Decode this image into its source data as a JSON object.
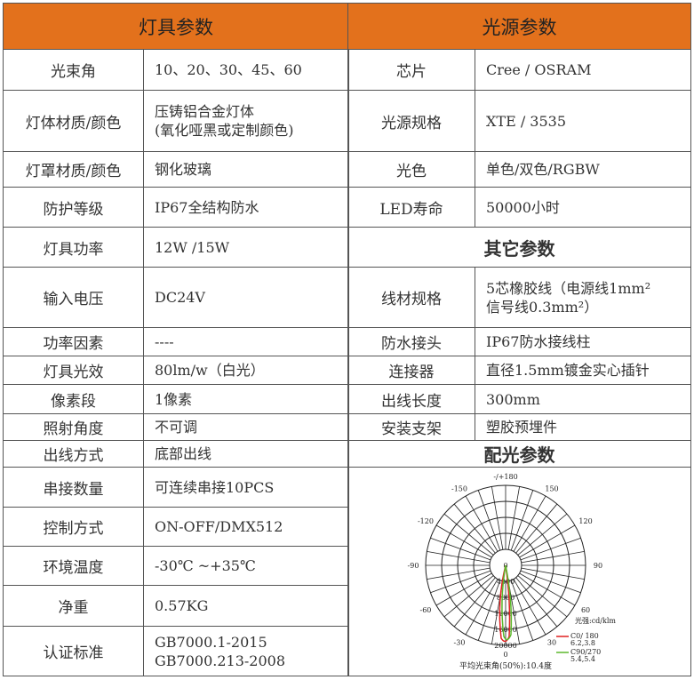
{
  "left": {
    "title": "灯具参数",
    "rows": [
      {
        "k": "光束角",
        "v": "10、20、30、45、60",
        "h": 46
      },
      {
        "k": "灯体材质/颜色",
        "v": "压铸铝合金灯体\n(氧化哑黑或定制颜色)",
        "h": 69
      },
      {
        "k": "灯罩材质/颜色",
        "v": "钢化玻璃",
        "h": 40
      },
      {
        "k": "防护等级",
        "v": "IP67全结构防水",
        "h": 45
      },
      {
        "k": "灯具功率",
        "v": "12W /15W",
        "h": 45
      },
      {
        "k": "输入电压",
        "v": "DC24V",
        "h": 68
      },
      {
        "k": "功率因素",
        "v": "----",
        "h": 32
      },
      {
        "k": "灯具光效",
        "v": "80lm/w（白光）",
        "h": 32
      },
      {
        "k": "像素段",
        "v": "1像素",
        "h": 33
      },
      {
        "k": "照射角度",
        "v": "不可调",
        "h": 30
      },
      {
        "k": "出线方式",
        "v": "底部出线",
        "h": 30
      },
      {
        "k": "串接数量",
        "v": "可连续串接10PCS",
        "h": 45
      },
      {
        "k": "控制方式",
        "v": "ON-OFF/DMX512",
        "h": 44
      },
      {
        "k": "环境温度",
        "v": "-30℃ ~+35℃",
        "h": 44
      },
      {
        "k": "净重",
        "v": "0.57KG",
        "h": 46
      },
      {
        "k": "认证标准",
        "v": "GB7000.1-2015\nGB7000.213-2008",
        "h": 55
      }
    ]
  },
  "right": {
    "title": "光源参数",
    "rows": [
      {
        "k": "芯片",
        "v": "Cree / OSRAM",
        "h": 46
      },
      {
        "k": "光源规格",
        "v": "XTE / 3535",
        "h": 69
      },
      {
        "k": "光色",
        "v": "单色/双色/RGBW",
        "h": 40
      },
      {
        "k": "LED寿命",
        "v": "50000小时",
        "h": 45
      }
    ],
    "other_title": "其它参数",
    "other_rows": [
      {
        "k": "线材规格",
        "v": "5芯橡胶线（电源线1mm²\n信号线0.3mm²）",
        "h": 68
      },
      {
        "k": "防水接头",
        "v": "IP67防水接线柱",
        "h": 32
      },
      {
        "k": "连接器",
        "v": "直径1.5mm镀金实心插针",
        "h": 32
      },
      {
        "k": "出线长度",
        "v": "300mm",
        "h": 33
      },
      {
        "k": "安装支架",
        "v": "塑胶预埋件",
        "h": 30
      }
    ],
    "photo_title": "配光参数"
  },
  "polar": {
    "angle_labels": [
      "-/+180",
      "-150",
      "150",
      "-120",
      "120",
      "-90",
      "90",
      "-60",
      "60",
      "-30",
      "30",
      "0"
    ],
    "radial_labels": [
      "0",
      "4000",
      "8000",
      "12000",
      "16000",
      "20000"
    ],
    "unit": "光强:cd/klm",
    "series": [
      {
        "name": "C0/ 180",
        "values": "6.2,3.8",
        "color": "#e02020"
      },
      {
        "name": "C90/270",
        "values": "5.4,5.4",
        "color": "#5cb82c"
      }
    ],
    "beam_angle": "平均光束角(50%):10.4度"
  }
}
